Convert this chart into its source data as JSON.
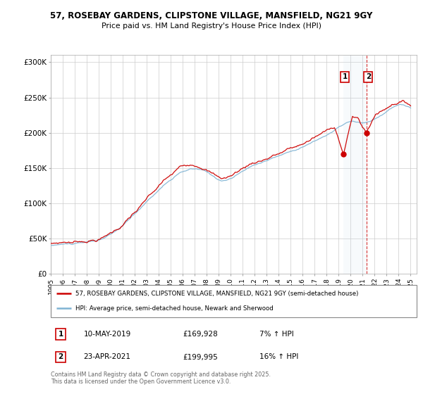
{
  "title_line1": "57, ROSEBAY GARDENS, CLIPSTONE VILLAGE, MANSFIELD, NG21 9GY",
  "title_line2": "Price paid vs. HM Land Registry's House Price Index (HPI)",
  "ylabel_ticks": [
    "£0",
    "£50K",
    "£100K",
    "£150K",
    "£200K",
    "£250K",
    "£300K"
  ],
  "ytick_values": [
    0,
    50000,
    100000,
    150000,
    200000,
    250000,
    300000
  ],
  "ylim": [
    0,
    310000
  ],
  "legend_line1": "57, ROSEBAY GARDENS, CLIPSTONE VILLAGE, MANSFIELD, NG21 9GY (semi-detached house)",
  "legend_line2": "HPI: Average price, semi-detached house, Newark and Sherwood",
  "sale1_date": "10-MAY-2019",
  "sale1_price": "£169,928",
  "sale1_hpi": "7% ↑ HPI",
  "sale1_x": 2019.36,
  "sale1_y": 169928,
  "sale2_date": "23-APR-2021",
  "sale2_price": "£199,995",
  "sale2_hpi": "16% ↑ HPI",
  "sale2_x": 2021.31,
  "sale2_y": 199995,
  "copyright_text": "Contains HM Land Registry data © Crown copyright and database right 2025.\nThis data is licensed under the Open Government Licence v3.0.",
  "hpi_color": "#7fb3d3",
  "price_color": "#cc0000",
  "shade_color": "#cce0f0",
  "background_color": "#ffffff",
  "grid_color": "#cccccc",
  "xlim_start": 1995,
  "xlim_end": 2025.5
}
